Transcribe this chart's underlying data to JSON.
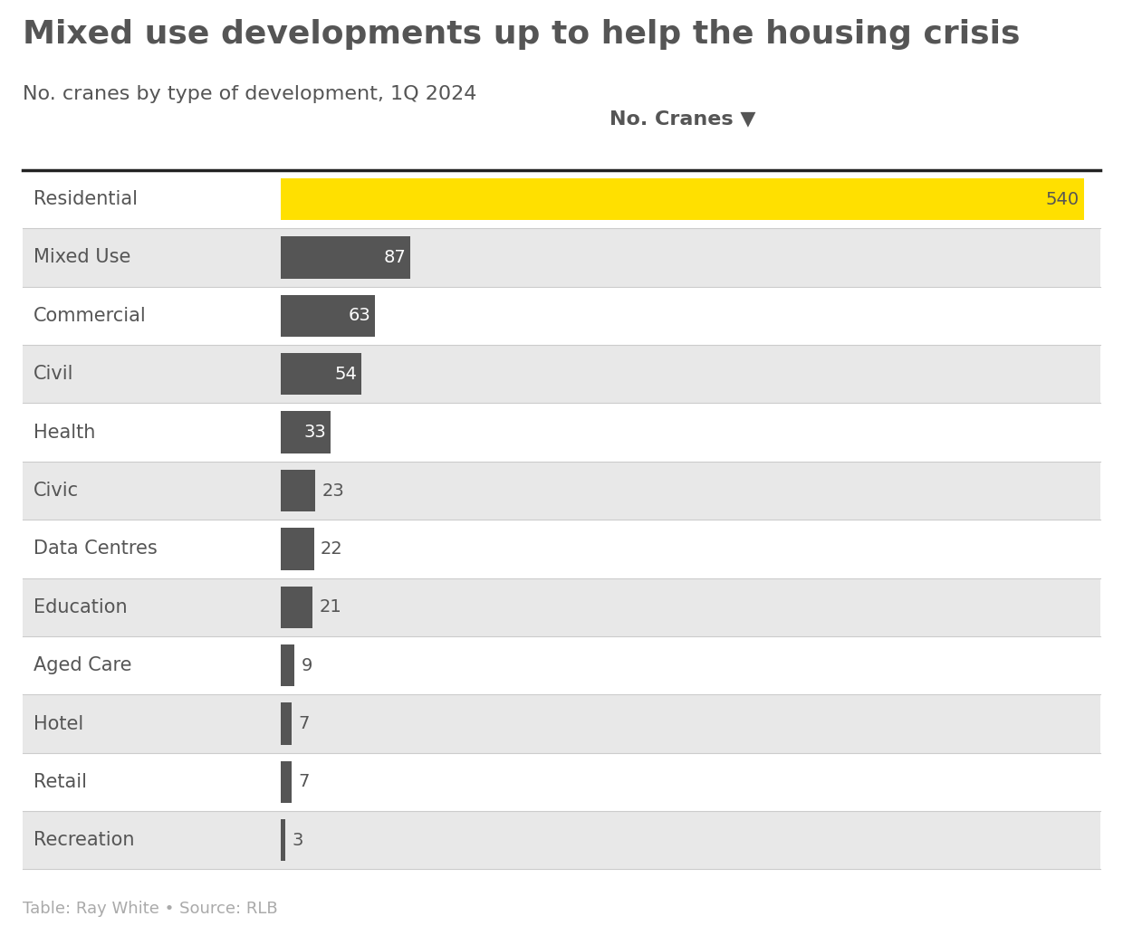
{
  "title": "Mixed use developments up to help the housing crisis",
  "subtitle": "No. cranes by type of development, 1Q 2024",
  "footnote": "Table: Ray White • Source: RLB",
  "column_header": "No. Cranes ▼",
  "categories": [
    "Residential",
    "Mixed Use",
    "Commercial",
    "Civil",
    "Health",
    "Civic",
    "Data Centres",
    "Education",
    "Aged Care",
    "Hotel",
    "Retail",
    "Recreation"
  ],
  "values": [
    540,
    87,
    63,
    54,
    33,
    23,
    22,
    21,
    9,
    7,
    7,
    3
  ],
  "bar_colors": [
    "#FFE000",
    "#555555",
    "#555555",
    "#555555",
    "#555555",
    "#555555",
    "#555555",
    "#555555",
    "#555555",
    "#555555",
    "#555555",
    "#555555"
  ],
  "label_colors_inside": [
    "#555555",
    "#ffffff",
    "#ffffff",
    "#ffffff",
    "#ffffff",
    "#ffffff",
    "#ffffff",
    "#ffffff"
  ],
  "label_colors_outside": [
    "#555555",
    "#555555",
    "#555555",
    "#555555"
  ],
  "row_bg_colors": [
    "#ffffff",
    "#e8e8e8",
    "#ffffff",
    "#e8e8e8",
    "#ffffff",
    "#e8e8e8",
    "#ffffff",
    "#e8e8e8",
    "#ffffff",
    "#e8e8e8",
    "#ffffff",
    "#e8e8e8"
  ],
  "max_value": 540,
  "title_fontsize": 26,
  "subtitle_fontsize": 16,
  "category_fontsize": 15,
  "value_fontsize": 14,
  "header_fontsize": 16,
  "footnote_fontsize": 13,
  "background_color": "#ffffff",
  "text_color": "#555555",
  "header_line_color": "#222222",
  "row_separator_color": "#cccccc",
  "footnote_color": "#aaaaaa"
}
